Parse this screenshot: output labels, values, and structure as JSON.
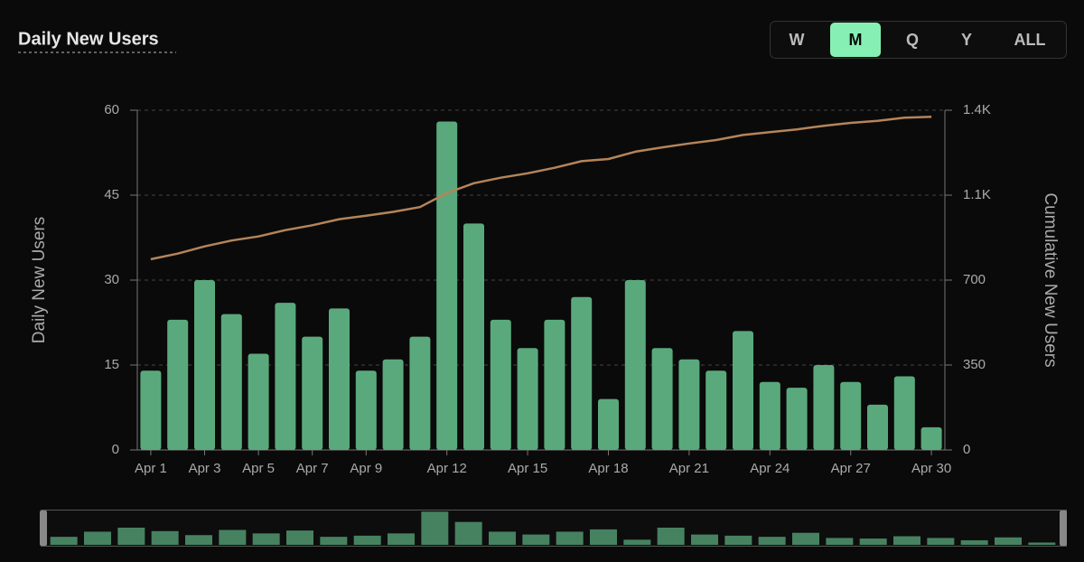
{
  "chart_data": {
    "type": "bar",
    "title": "Daily New Users",
    "range_buttons": [
      "W",
      "M",
      "Q",
      "Y",
      "ALL"
    ],
    "active_range": "M",
    "ylabel": "Daily New Users",
    "y2label": "Cumulative New Users",
    "categories": [
      "Apr 1",
      null,
      "Apr 3",
      null,
      "Apr 5",
      null,
      "Apr 7",
      null,
      "Apr 9",
      null,
      null,
      "Apr 12",
      null,
      null,
      "Apr 15",
      null,
      null,
      "Apr 18",
      null,
      null,
      "Apr 21",
      null,
      null,
      "Apr 24",
      null,
      null,
      "Apr 27",
      null,
      null,
      "Apr 30"
    ],
    "series": [
      {
        "name": "Daily New Users",
        "type": "bar",
        "color": "#5aa97c",
        "values": [
          14,
          23,
          30,
          24,
          17,
          26,
          20,
          25,
          14,
          16,
          20,
          58,
          40,
          23,
          18,
          23,
          27,
          9,
          30,
          18,
          16,
          14,
          21,
          12,
          11,
          15,
          12,
          8,
          13,
          4
        ]
      },
      {
        "name": "Cumulative New Users",
        "type": "line",
        "axis": "y2",
        "color": "#b5845a",
        "values": [
          786,
          809,
          839,
          863,
          880,
          906,
          926,
          951,
          965,
          981,
          1001,
          1059,
          1099,
          1122,
          1140,
          1163,
          1190,
          1199,
          1229,
          1247,
          1263,
          1277,
          1298,
          1310,
          1321,
          1336,
          1348,
          1356,
          1369,
          1373
        ]
      }
    ],
    "ylim": [
      0,
      60
    ],
    "yticks": [
      0,
      15,
      30,
      45,
      60
    ],
    "y2lim": [
      0,
      1400
    ],
    "y2ticks": [
      0,
      350,
      700,
      {
        "value": 1050,
        "label": "1.1K"
      },
      {
        "value": 1400,
        "label": "1.4K"
      }
    ],
    "grid": true
  }
}
